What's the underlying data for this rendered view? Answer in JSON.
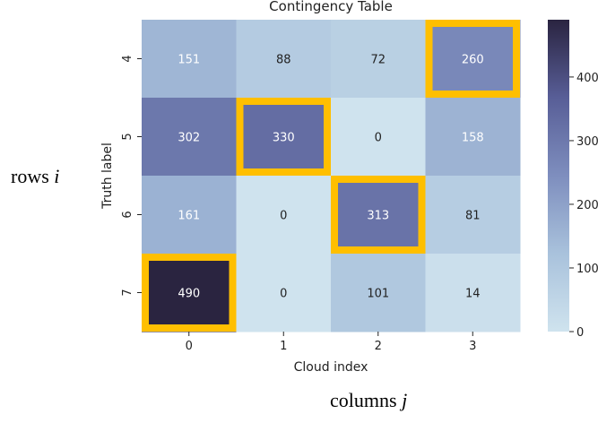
{
  "annotations": {
    "rows_word": "rows",
    "rows_var": "i",
    "columns_word": "columns",
    "columns_var": "j"
  },
  "colors": {
    "highlight": "#FFBF00",
    "cmap_low": "#CFE3EE",
    "cmap_high": "#2A2440"
  },
  "chart_data": {
    "type": "heatmap",
    "title": "Contingency Table",
    "xlabel": "Cloud index",
    "ylabel": "Truth label",
    "x_categories": [
      "0",
      "1",
      "2",
      "3"
    ],
    "y_categories": [
      "4",
      "5",
      "6",
      "7"
    ],
    "values": [
      [
        151,
        88,
        72,
        260
      ],
      [
        302,
        330,
        0,
        158
      ],
      [
        161,
        0,
        313,
        81
      ],
      [
        490,
        0,
        101,
        14
      ]
    ],
    "highlighted_cells": [
      {
        "row": "4",
        "col": "3"
      },
      {
        "row": "5",
        "col": "1"
      },
      {
        "row": "6",
        "col": "2"
      },
      {
        "row": "7",
        "col": "0"
      }
    ],
    "colorbar": {
      "ticks": [
        "0",
        "100",
        "200",
        "300",
        "400"
      ],
      "range": [
        0,
        490
      ]
    }
  }
}
